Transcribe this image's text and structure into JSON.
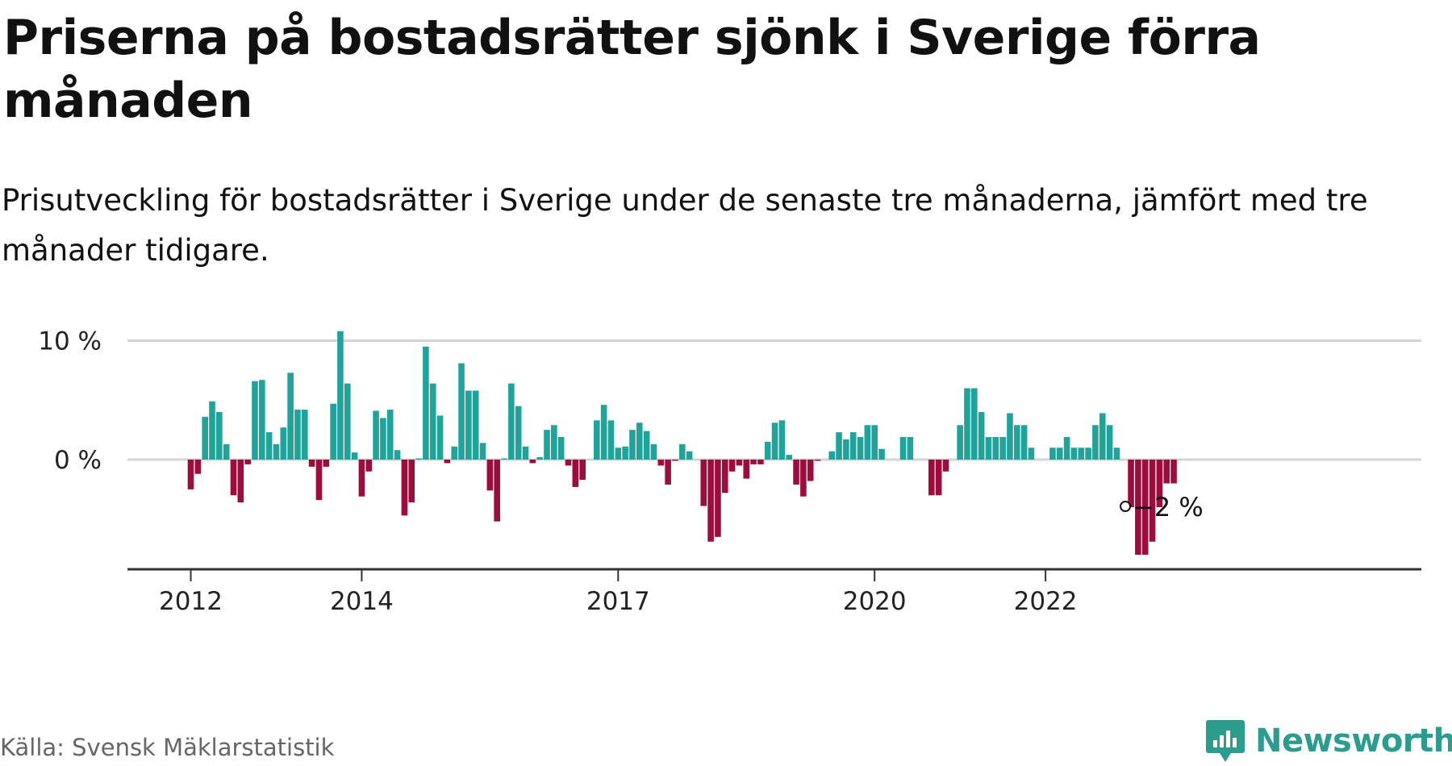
{
  "header": {
    "title": "Priserna på bostadsrätter sjönk i Sverige förra månaden",
    "subtitle": "Prisutveckling för bostadsrätter i Sverige under de senaste tre månaderna, jämfört med tre månader tidigare."
  },
  "footer": {
    "source": "Källa: Svensk Mäklarstatistik",
    "brand": "Newsworthy"
  },
  "colors": {
    "positive": "#1fa39b",
    "negative": "#9c0c3d",
    "grid": "#d4d4d4",
    "axis": "#333333",
    "brand": "#2a9d8f"
  },
  "chart_data": {
    "type": "bar",
    "title": "Priserna på bostadsrätter sjönk i Sverige förra månaden",
    "subtitle": "Prisutveckling för bostadsrätter i Sverige under de senaste tre månaderna, jämfört med tre månader tidigare.",
    "start_month": "2012-01",
    "x_ticks": [
      {
        "label": "2012",
        "month": "2012-01"
      },
      {
        "label": "2014",
        "month": "2014-01"
      },
      {
        "label": "2017",
        "month": "2017-01"
      },
      {
        "label": "2020",
        "month": "2020-01"
      },
      {
        "label": "2022",
        "month": "2022-01"
      }
    ],
    "y_ticks": [
      {
        "label": "10 %",
        "value": 10
      },
      {
        "label": "0 %",
        "value": 0
      }
    ],
    "ylim": [
      -9.2,
      10.5
    ],
    "grid": true,
    "values": [
      -2.5,
      -1.2,
      3.6,
      4.9,
      4.0,
      1.3,
      -3.0,
      -3.6,
      -0.4,
      6.6,
      6.7,
      2.3,
      1.3,
      2.7,
      7.3,
      4.2,
      4.2,
      -0.6,
      -3.4,
      -0.6,
      4.7,
      10.8,
      6.4,
      0.6,
      -3.1,
      -1.0,
      4.1,
      3.5,
      4.2,
      0.8,
      -4.7,
      -3.6,
      0.1,
      9.5,
      6.4,
      3.7,
      -0.3,
      1.1,
      8.1,
      5.8,
      5.8,
      1.4,
      -2.6,
      -5.2,
      0.1,
      6.4,
      4.5,
      1.1,
      -0.3,
      0.2,
      2.5,
      2.9,
      1.9,
      -0.5,
      -2.3,
      -1.7,
      0.0,
      3.3,
      4.6,
      3.3,
      1.0,
      1.1,
      2.5,
      3.1,
      2.4,
      1.3,
      -0.5,
      -2.1,
      -0.1,
      1.3,
      0.7,
      0.0,
      -3.9,
      -6.9,
      -6.5,
      -2.8,
      -1.0,
      -0.5,
      -1.6,
      -0.4,
      -0.4,
      1.5,
      3.1,
      3.3,
      0.4,
      -2.1,
      -3.1,
      -1.8,
      -0.1,
      0.0,
      0.7,
      2.3,
      1.7,
      2.3,
      1.9,
      2.9,
      2.9,
      0.9,
      0.0,
      0.0,
      1.9,
      1.9,
      0.0,
      0.0,
      -3.0,
      -3.0,
      -1.0,
      0.0,
      2.9,
      6.0,
      6.0,
      4.0,
      1.9,
      1.9,
      1.9,
      3.9,
      2.9,
      2.9,
      1.0,
      0.0,
      0.0,
      1.0,
      1.0,
      1.9,
      1.0,
      1.0,
      1.0,
      2.9,
      3.9,
      2.9,
      1.0,
      0.0,
      -4.0,
      -8.0,
      -8.0,
      -6.9,
      -4.0,
      -2.0,
      -2.0
    ],
    "annotation": {
      "label": "−2 %",
      "value": -2
    }
  }
}
